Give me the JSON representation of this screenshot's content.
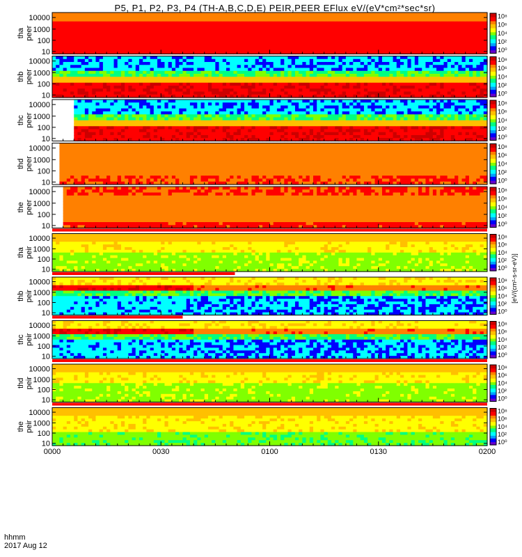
{
  "title": "P5, P1, P2, P3, P4 (TH-A,B,C,D,E) PEIR,PEER EFlux eV/(eV*cm²*sec*sr)",
  "x_header": {
    "line1": "hhmm",
    "line2": "2017 Aug 12"
  },
  "colors": {
    "colormap": [
      "#6600cc",
      "#0000ff",
      "#00a0ff",
      "#00ffff",
      "#00ff80",
      "#80ff00",
      "#ffff00",
      "#ffc000",
      "#ff8000",
      "#ff0000",
      "#cc0000"
    ],
    "fill_bar": "#ff0000",
    "sparse_background": "#00e0ff",
    "sparse_dots": "#000088"
  },
  "chart_data": {
    "type": "heatmap",
    "x_ticks": [
      "0000",
      "0030",
      "0100",
      "0130",
      "0200"
    ],
    "y_ticks": [
      "10000",
      "1000",
      "100",
      "10"
    ],
    "colorbar_ticks": [
      "10⁸",
      "10⁶",
      "10⁴",
      "10²",
      "10⁰"
    ],
    "colorbar_label": "[eV/(cm²-s-sr-eV)]",
    "panels": [
      {
        "probe": "tha",
        "species": "peer",
        "ylabel": "tha\npeer",
        "pattern": "red_uniform"
      },
      {
        "probe": "thb",
        "species": "peer",
        "ylabel": "thb\npeer",
        "pattern": "red_band_sparse_top"
      },
      {
        "probe": "thc",
        "species": "peer",
        "ylabel": "thc\npeer",
        "pattern": "red_band_sparse_top_gap"
      },
      {
        "probe": "thd",
        "species": "peer",
        "ylabel": "thd\npeer",
        "pattern": "orange_uniform"
      },
      {
        "probe": "the",
        "species": "peer",
        "ylabel": "the\npeer",
        "pattern": "orange_red_top"
      },
      {
        "probe": "tha",
        "species": "peir",
        "ylabel": "tha\npeir",
        "pattern": "yellow_green"
      },
      {
        "probe": "thb",
        "species": "peir",
        "ylabel": "thb\npeir",
        "pattern": "red_band_sparse_bottom"
      },
      {
        "probe": "thc",
        "species": "peir",
        "ylabel": "thc\npeir",
        "pattern": "red_band_sparse_bottom"
      },
      {
        "probe": "thd",
        "species": "peir",
        "ylabel": "thd\npeir",
        "pattern": "yellow_green"
      },
      {
        "probe": "the",
        "species": "peir",
        "ylabel": "the\npeir",
        "pattern": "yellow_green_low"
      }
    ]
  }
}
